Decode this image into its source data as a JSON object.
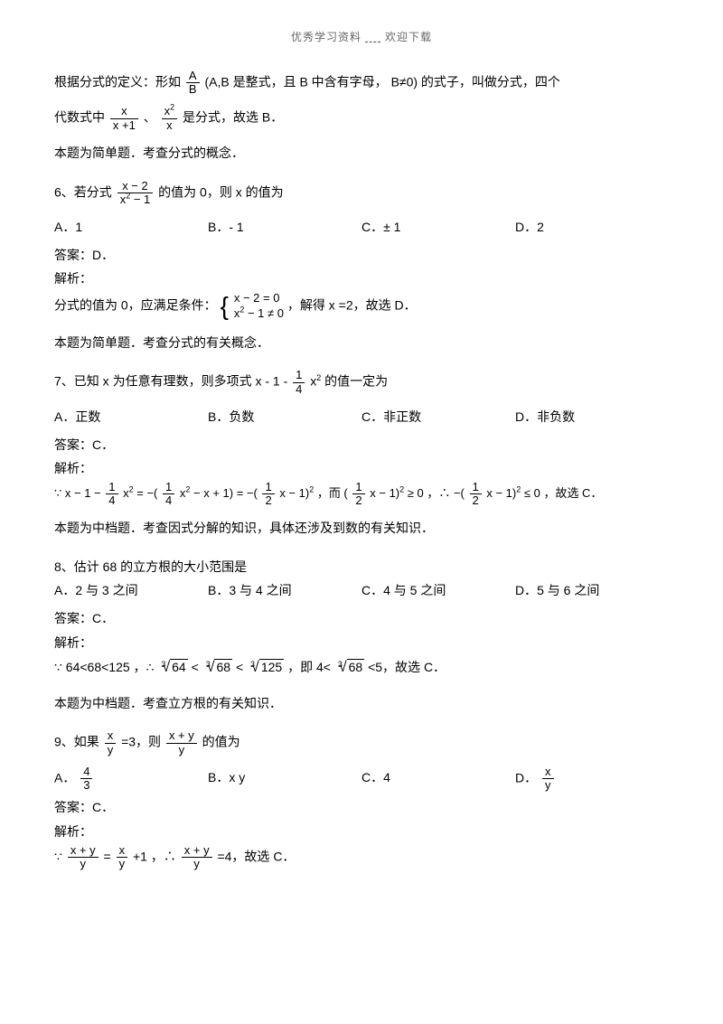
{
  "header": {
    "text1": "优秀学习资料",
    "text2": "欢迎下载"
  },
  "intro": {
    "p1a": "根据分式的定义：形如",
    "p1_frac_n": "A",
    "p1_frac_d": "B",
    "p1b": "(A,B 是整式，且 B 中含有字母， B≠0) 的式子，叫做分式，四个",
    "p2a": "代数式中",
    "p2_f1n": "x",
    "p2_f1d": "x +1",
    "p2b": "、",
    "p2_f2n": "x",
    "p2_f2d": "x",
    "p2c": "是分式，故选 B．",
    "p3": "本题为简单题．考查分式的概念．"
  },
  "q6": {
    "stem_a": "6、若分式",
    "fn": "x − 2",
    "fd": "x  − 1",
    "stem_b": "的值为 0，则 x 的值为",
    "optA": "A．1",
    "optB": "B．- 1",
    "optC": "C．± 1",
    "optD": "D．2",
    "ans": "答案：D．",
    "jx": "解析：",
    "e1a": "分式的值为 0，应满足条件：",
    "c1": "x − 2 = 0",
    "c2": "x  − 1 ≠ 0",
    "e1b": "，解得 x =2，故选 D．",
    "note": "本题为简单题．考查分式的有关概念．"
  },
  "q7": {
    "stem_a": "7、已知 x 为任意有理数，则多项式  x - 1 -",
    "fn": "1",
    "fd": "4",
    "stem_b": "x",
    "stem_c": "的值一定为",
    "optA": "A．正数",
    "optB": "B．负数",
    "optC": "C．非正数",
    "optD": "D．非负数",
    "ans": "答案：C．",
    "jx": "解析：",
    "e1": "∵ x − 1 −",
    "e2": "x  = −(",
    "e3": "x  − x + 1) = −(",
    "e4": "x − 1)  ，而 (",
    "e5": "x − 1)  ≥ 0 ，∴ −(",
    "e6": "x − 1)  ≤ 0 ，故选 C．",
    "note": "本题为中档题．考查因式分解的知识，具体还涉及到数的有关知识．"
  },
  "q8": {
    "stem": "8、估计 68 的立方根的大小范围是",
    "optA": "A．2 与 3 之间",
    "optB": "B．3 与 4 之间",
    "optC": "C．4 与 5 之间",
    "optD": "D．5 与 6 之间",
    "ans": "答案：C．",
    "jx": "解析：",
    "e1a": "∵ 64<68<125 ，∴",
    "r1": "64",
    "r2": "68",
    "r3": "125",
    "e1b": "，即 4<",
    "r4": "68",
    "e1c": "<5，故选 C．",
    "note": "本题为中档题．考查立方根的有关知识．"
  },
  "q9": {
    "stem_a": "9、如果",
    "f1n": "x",
    "f1d": "y",
    "stem_b": "=3，则",
    "f2n": "x + y",
    "f2d": "y",
    "stem_c": "的值为",
    "optA_a": "A．",
    "optA_n": "4",
    "optA_d": "3",
    "optB": "B．x y",
    "optC": "C．4",
    "optD_a": "D．",
    "optD_n": "x",
    "optD_d": "y",
    "ans": "答案：C．",
    "jx": "解析：",
    "e1a": "∵",
    "e1_f1n": "x + y",
    "e1_f1d": "y",
    "e1b": "=",
    "e1_f2n": "x",
    "e1_f2d": "y",
    "e1c": "+1 ，∴",
    "e1_f3n": "x + y",
    "e1_f3d": "y",
    "e1d": "=4，故选 C．"
  }
}
